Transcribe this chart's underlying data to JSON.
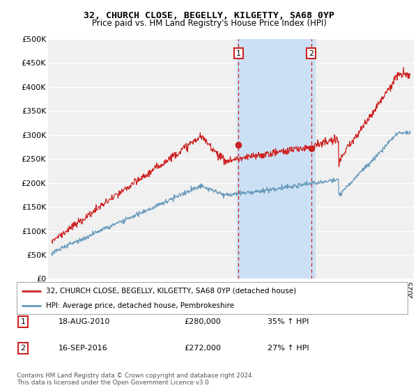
{
  "title1": "32, CHURCH CLOSE, BEGELLY, KILGETTY, SA68 0YP",
  "title2": "Price paid vs. HM Land Registry's House Price Index (HPI)",
  "ylabel_ticks": [
    "£0",
    "£50K",
    "£100K",
    "£150K",
    "£200K",
    "£250K",
    "£300K",
    "£350K",
    "£400K",
    "£450K",
    "£500K"
  ],
  "ytick_vals": [
    0,
    50000,
    100000,
    150000,
    200000,
    250000,
    300000,
    350000,
    400000,
    450000,
    500000
  ],
  "xlim_start": 1994.7,
  "xlim_end": 2025.3,
  "ylim": [
    0,
    500000
  ],
  "sale1_date": 2010.63,
  "sale1_price": 280000,
  "sale2_date": 2016.71,
  "sale2_price": 272000,
  "highlight_start": 2010.5,
  "highlight_end": 2017.0,
  "background_color": "#ffffff",
  "plot_bg_color": "#f0f0f0",
  "highlight_color": "#cce0f5",
  "grid_color": "#ffffff",
  "red_color": "#cc2222",
  "blue_color": "#6699bb",
  "vline_color": "#cc2222",
  "legend1": "32, CHURCH CLOSE, BEGELLY, KILGETTY, SA68 0YP (detached house)",
  "legend2": "HPI: Average price, detached house, Pembrokeshire",
  "table_row1": [
    "1",
    "18-AUG-2010",
    "£280,000",
    "35% ↑ HPI"
  ],
  "table_row2": [
    "2",
    "16-SEP-2016",
    "£272,000",
    "27% ↑ HPI"
  ],
  "footnote": "Contains HM Land Registry data © Crown copyright and database right 2024.\nThis data is licensed under the Open Government Licence v3.0."
}
